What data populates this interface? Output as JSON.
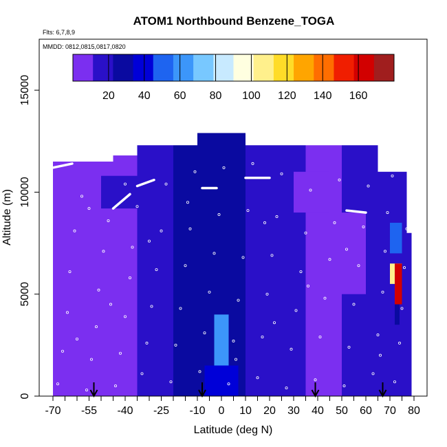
{
  "chart_data": {
    "type": "heatmap",
    "title": "ATOM1 Northbound Benzene_TOGA",
    "flights_note": "Flts: 6,7,8,9",
    "dates_note": "MMDD: 0812,0815,0817,0820",
    "xlabel": "Latitude (deg N)",
    "ylabel": "Altitude (m)",
    "xlim": [
      -70,
      80
    ],
    "ylim": [
      0,
      17500
    ],
    "x_tick_labels": [
      "-70",
      "-55",
      "-40",
      "-25",
      "-10",
      "0",
      "10",
      "20",
      "30",
      "40",
      "50",
      "60",
      "70",
      "80"
    ],
    "x_tick_values": [
      -70,
      -55,
      -40,
      -25,
      -10,
      0,
      10,
      20,
      30,
      40,
      50,
      60,
      70,
      80
    ],
    "y_tick_labels": [
      "0",
      "5000",
      "10000",
      "15000"
    ],
    "y_tick_values": [
      0,
      5000,
      10000,
      15000
    ],
    "colorbar": {
      "ticks": [
        "20",
        "40",
        "60",
        "80",
        "100",
        "120",
        "140",
        "160"
      ],
      "tick_values": [
        20,
        40,
        60,
        80,
        100,
        120,
        140,
        160
      ],
      "range": [
        0,
        180
      ],
      "colors": [
        "#7b2ff0",
        "#2a10c8",
        "#0a0aa0",
        "#0000d8",
        "#1e64f0",
        "#3c96fa",
        "#78c8ff",
        "#c8eaff",
        "#ffffe0",
        "#fff08c",
        "#ffdc28",
        "#ffa500",
        "#ff6e00",
        "#f01e00",
        "#d20000",
        "#a01e1e"
      ]
    },
    "arrows_latitude": [
      -53,
      -8,
      39,
      67
    ],
    "cells": [
      {
        "lat": [
          -70,
          -45
        ],
        "alt": [
          0,
          11500
        ],
        "v": 6
      },
      {
        "lat": [
          -45,
          -35
        ],
        "alt": [
          0,
          11800
        ],
        "v": 10
      },
      {
        "lat": [
          -35,
          -20
        ],
        "alt": [
          0,
          12300
        ],
        "v": 16
      },
      {
        "lat": [
          -20,
          -10
        ],
        "alt": [
          0,
          12300
        ],
        "v": 24
      },
      {
        "lat": [
          -10,
          10
        ],
        "alt": [
          0,
          12900
        ],
        "v": 28
      },
      {
        "lat": [
          10,
          25
        ],
        "alt": [
          0,
          12300
        ],
        "v": 12
      },
      {
        "lat": [
          25,
          35
        ],
        "alt": [
          0,
          12300
        ],
        "v": 22
      },
      {
        "lat": [
          35,
          50
        ],
        "alt": [
          0,
          12300
        ],
        "v": 8
      },
      {
        "lat": [
          50,
          65
        ],
        "alt": [
          0,
          12300
        ],
        "v": 14
      },
      {
        "lat": [
          65,
          77
        ],
        "alt": [
          0,
          11000
        ],
        "v": 18
      },
      {
        "lat": [
          77,
          79
        ],
        "alt": [
          0,
          8000
        ],
        "v": 22
      },
      {
        "lat": [
          -3,
          3
        ],
        "alt": [
          1500,
          4000
        ],
        "v": 60
      },
      {
        "lat": [
          -7,
          7
        ],
        "alt": [
          0,
          1500
        ],
        "v": 40
      },
      {
        "lat": [
          70,
          75
        ],
        "alt": [
          7000,
          8500
        ],
        "v": 55
      },
      {
        "lat": [
          70,
          75
        ],
        "alt": [
          5500,
          6500
        ],
        "v": 110
      },
      {
        "lat": [
          72,
          75
        ],
        "alt": [
          4500,
          6500
        ],
        "v": 165
      },
      {
        "lat": [
          72,
          74
        ],
        "alt": [
          3500,
          4500
        ],
        "v": 25
      },
      {
        "lat": [
          -50,
          -20
        ],
        "alt": [
          9200,
          10800
        ],
        "v": 20
      },
      {
        "lat": [
          30,
          45
        ],
        "alt": [
          9000,
          11000
        ],
        "v": 6
      },
      {
        "lat": [
          45,
          60
        ],
        "alt": [
          5000,
          9000
        ],
        "v": 6
      }
    ],
    "flight_tracks": [
      {
        "lat": [
          -70,
          -62
        ],
        "alt": [
          11200,
          11400
        ]
      },
      {
        "lat": [
          -45,
          -38
        ],
        "alt": [
          9200,
          9900
        ]
      },
      {
        "lat": [
          -35,
          -28
        ],
        "alt": [
          10300,
          10600
        ]
      },
      {
        "lat": [
          52,
          60
        ],
        "alt": [
          9100,
          9000
        ]
      },
      {
        "lat": [
          10,
          20
        ],
        "alt": [
          10700,
          10700
        ]
      },
      {
        "lat": [
          -8,
          -2
        ],
        "alt": [
          10200,
          10200
        ]
      },
      {
        "lat": [
          38,
          40
        ],
        "alt": [
          12800,
          12800
        ]
      }
    ],
    "sample_points": [
      [
        -68,
        600
      ],
      [
        -66,
        2200
      ],
      [
        -64,
        4100
      ],
      [
        -63,
        6100
      ],
      [
        -61,
        8100
      ],
      [
        -58,
        9800
      ],
      [
        -56,
        300
      ],
      [
        -54,
        1800
      ],
      [
        -52,
        3400
      ],
      [
        -51,
        5200
      ],
      [
        -49,
        7100
      ],
      [
        -47,
        8600
      ],
      [
        -44,
        500
      ],
      [
        -42,
        2100
      ],
      [
        -40,
        3900
      ],
      [
        -38,
        5800
      ],
      [
        -37,
        7300
      ],
      [
        -35,
        9300
      ],
      [
        -33,
        1100
      ],
      [
        -31,
        2600
      ],
      [
        -29,
        4400
      ],
      [
        -27,
        6200
      ],
      [
        -25,
        8100
      ],
      [
        -23,
        10400
      ],
      [
        -21,
        700
      ],
      [
        -19,
        2500
      ],
      [
        -17,
        4300
      ],
      [
        -15,
        6400
      ],
      [
        -13,
        8200
      ],
      [
        -11,
        11000
      ],
      [
        -9,
        1200
      ],
      [
        -7,
        3100
      ],
      [
        -5,
        5100
      ],
      [
        -3,
        7000
      ],
      [
        -1,
        8900
      ],
      [
        1,
        11200
      ],
      [
        3,
        600
      ],
      [
        5,
        2700
      ],
      [
        7,
        4700
      ],
      [
        9,
        6800
      ],
      [
        11,
        9100
      ],
      [
        13,
        11400
      ],
      [
        15,
        900
      ],
      [
        17,
        2900
      ],
      [
        19,
        5000
      ],
      [
        21,
        6900
      ],
      [
        23,
        8800
      ],
      [
        25,
        10900
      ],
      [
        27,
        400
      ],
      [
        29,
        2300
      ],
      [
        31,
        4200
      ],
      [
        33,
        6100
      ],
      [
        35,
        8000
      ],
      [
        37,
        10100
      ],
      [
        39,
        800
      ],
      [
        41,
        2900
      ],
      [
        43,
        4800
      ],
      [
        45,
        6700
      ],
      [
        47,
        8500
      ],
      [
        49,
        10600
      ],
      [
        51,
        500
      ],
      [
        53,
        2400
      ],
      [
        55,
        4500
      ],
      [
        57,
        6400
      ],
      [
        59,
        8300
      ],
      [
        61,
        10300
      ],
      [
        63,
        1100
      ],
      [
        65,
        3000
      ],
      [
        67,
        5100
      ],
      [
        68,
        7100
      ],
      [
        69,
        9000
      ],
      [
        71,
        10800
      ],
      [
        72,
        700
      ],
      [
        74,
        2600
      ],
      [
        75,
        4300
      ],
      [
        76,
        6300
      ],
      [
        77,
        8200
      ],
      [
        78,
        10100
      ],
      [
        -60,
        2800
      ],
      [
        -46,
        4500
      ],
      [
        -30,
        7600
      ],
      [
        -14,
        9500
      ],
      [
        6,
        1800
      ],
      [
        22,
        3600
      ],
      [
        36,
        5400
      ],
      [
        52,
        7200
      ],
      [
        66,
        2000
      ],
      [
        -55,
        9200
      ],
      [
        -40,
        10400
      ],
      [
        18,
        8500
      ]
    ]
  }
}
